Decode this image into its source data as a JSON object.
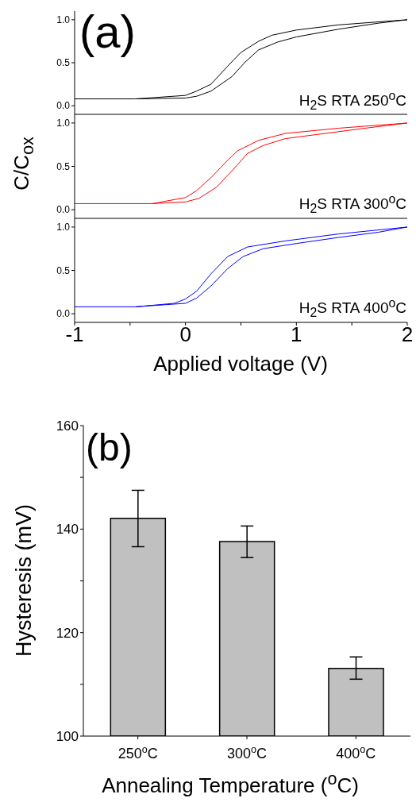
{
  "chart_data": [
    {
      "type": "line",
      "annotations": [
        "(a)",
        "H$_{2}$S RTA 250$^{o}$C"
      ],
      "xlim": [
        -1,
        2
      ],
      "xticks": [
        -1,
        0,
        1,
        2
      ],
      "ylim": [
        -0.1,
        1.1
      ],
      "yticks": [
        {
          "value": 0,
          "label": "0.0"
        },
        {
          "value": 0.5,
          "label": "0.5"
        },
        {
          "value": 1,
          "label": "1.0"
        }
      ],
      "tick_labels": "y",
      "series": [
        {
          "color": "#000000",
          "x": [
            -1,
            -0.45,
            0,
            0.1,
            0.23,
            0.38,
            0.5,
            0.66,
            0.78,
            1.0,
            1.38,
            2
          ],
          "values": [
            0.08,
            0.08,
            0.12,
            0.17,
            0.25,
            0.46,
            0.62,
            0.75,
            0.82,
            0.88,
            0.94,
            1.0
          ]
        },
        {
          "color": "#000000",
          "x": [
            -0.45,
            0,
            0.1,
            0.23,
            0.42,
            0.54,
            0.66,
            0.83,
            1.0,
            1.38,
            1.74,
            2
          ],
          "values": [
            0.08,
            0.09,
            0.11,
            0.17,
            0.34,
            0.51,
            0.65,
            0.74,
            0.8,
            0.89,
            0.96,
            1.0
          ]
        }
      ]
    },
    {
      "type": "line",
      "ylabel": "C/C$_{ox}$",
      "annotations": [
        "H$_{2}$S RTA 300$^{o}$C"
      ],
      "xlim": [
        -1,
        2
      ],
      "xticks": [
        -1,
        0,
        1,
        2
      ],
      "ylim": [
        -0.1,
        1.1
      ],
      "yticks": [
        {
          "value": 0,
          "label": "0.0"
        },
        {
          "value": 0.5,
          "label": "0.5"
        },
        {
          "value": 1,
          "label": "1.0"
        }
      ],
      "tick_labels": "y",
      "series": [
        {
          "color": "#ff0000",
          "x": [
            -1,
            -0.3,
            0,
            0.1,
            0.23,
            0.38,
            0.47,
            0.66,
            0.9,
            1.38,
            2
          ],
          "values": [
            0.07,
            0.07,
            0.14,
            0.22,
            0.37,
            0.57,
            0.68,
            0.8,
            0.88,
            0.94,
            1.0
          ]
        },
        {
          "color": "#ff0000",
          "x": [
            -0.3,
            0,
            0.12,
            0.28,
            0.42,
            0.56,
            0.7,
            0.9,
            1.14,
            1.62,
            2
          ],
          "values": [
            0.07,
            0.09,
            0.13,
            0.26,
            0.45,
            0.65,
            0.74,
            0.82,
            0.86,
            0.94,
            1.0
          ]
        }
      ]
    },
    {
      "type": "line",
      "xlabel": "Applied voltage (V)",
      "annotations": [
        "H$_{2}$S RTA 400$^{o}$C"
      ],
      "xlim": [
        -1,
        2
      ],
      "xticks": [
        -1,
        {
          "value": -0.5,
          "label": null
        },
        0,
        {
          "value": 0.5,
          "label": null
        },
        1,
        {
          "value": 1.5,
          "label": null
        },
        2
      ],
      "ylim": [
        -0.1,
        1.1
      ],
      "yticks": [
        {
          "value": 0,
          "label": "0.0"
        },
        {
          "value": 0.5,
          "label": "0.5"
        },
        {
          "value": 1,
          "label": "1.0"
        }
      ],
      "series": [
        {
          "color": "#0000ff",
          "x": [
            -1,
            -0.45,
            -0.1,
            0,
            0.1,
            0.23,
            0.38,
            0.56,
            0.9,
            1.38,
            2
          ],
          "values": [
            0.08,
            0.08,
            0.12,
            0.17,
            0.26,
            0.46,
            0.66,
            0.77,
            0.84,
            0.92,
            1.0
          ]
        },
        {
          "color": "#0000ff",
          "x": [
            -0.45,
            0,
            0.1,
            0.23,
            0.38,
            0.52,
            0.7,
            1.0,
            1.38,
            1.74,
            2
          ],
          "values": [
            0.08,
            0.12,
            0.18,
            0.32,
            0.52,
            0.66,
            0.75,
            0.81,
            0.88,
            0.94,
            1.0
          ]
        }
      ]
    },
    {
      "type": "bar",
      "annotations": [
        "(b)"
      ],
      "xlabel": "Annealing Temperature ($^{o}$C)",
      "ylabel": "Hysteresis (mV)",
      "categories": [
        "250$^{o}$C",
        "300$^{o}$C",
        "400$^{o}$C"
      ],
      "values": [
        142.1,
        137.6,
        113.1
      ],
      "color": "#c0c0c0",
      "errors": [
        [
          136.6,
          147.5
        ],
        [
          134.5,
          140.6
        ],
        [
          111.0,
          115.3
        ]
      ],
      "ylim": [
        100,
        160
      ],
      "yticks": [
        100,
        {
          "value": 110,
          "label": null
        },
        120,
        {
          "value": 130,
          "label": null
        },
        140,
        {
          "value": 150,
          "label": null
        },
        160
      ]
    }
  ]
}
